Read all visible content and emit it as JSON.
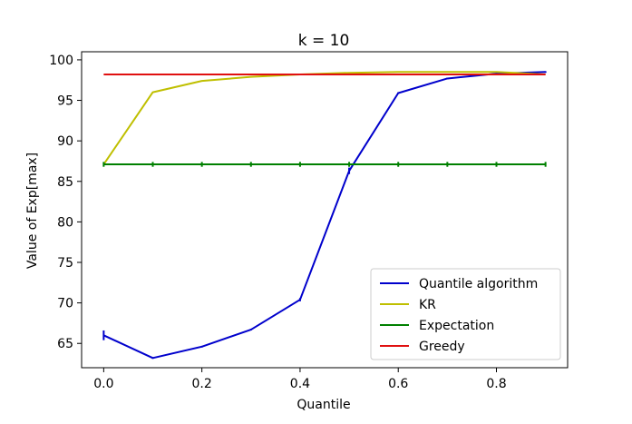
{
  "chart_data": {
    "type": "line",
    "title": "k = 10",
    "xlabel": "Quantile",
    "ylabel": "Value of Exp[max]",
    "xlim": [
      -0.045,
      0.945
    ],
    "ylim": [
      62,
      101
    ],
    "xticks": [
      0.0,
      0.2,
      0.4,
      0.6,
      0.8
    ],
    "xtick_labels": [
      "0.0",
      "0.2",
      "0.4",
      "0.6",
      "0.8"
    ],
    "yticks": [
      65,
      70,
      75,
      80,
      85,
      90,
      95,
      100
    ],
    "ytick_labels": [
      "65",
      "70",
      "75",
      "80",
      "85",
      "90",
      "95",
      "100"
    ],
    "x": [
      0.0,
      0.1,
      0.2,
      0.3,
      0.4,
      0.5,
      0.6,
      0.7,
      0.8,
      0.9
    ],
    "series": [
      {
        "name": "Quantile algorithm",
        "color": "#0000cc",
        "values": [
          66.0,
          63.2,
          64.6,
          66.7,
          70.4,
          86.3,
          95.9,
          97.7,
          98.3,
          98.5
        ],
        "errors": [
          0.6,
          0.1,
          0.1,
          0.1,
          0.2,
          0.4,
          0.1,
          0.1,
          0.1,
          0.1
        ]
      },
      {
        "name": "KR",
        "color": "#bfbf00",
        "values": [
          87.1,
          96.0,
          97.4,
          97.9,
          98.2,
          98.4,
          98.5,
          98.5,
          98.5,
          98.2
        ],
        "errors": [
          0,
          0,
          0,
          0,
          0,
          0,
          0,
          0,
          0,
          0
        ]
      },
      {
        "name": "Expectation",
        "color": "#008000",
        "values": [
          87.1,
          87.1,
          87.1,
          87.1,
          87.1,
          87.1,
          87.1,
          87.1,
          87.1,
          87.1
        ],
        "errors": [
          0.3,
          0.3,
          0.3,
          0.3,
          0.3,
          0.3,
          0.3,
          0.3,
          0.3,
          0.3
        ]
      },
      {
        "name": "Greedy",
        "color": "#e01010",
        "values": [
          98.2,
          98.2,
          98.2,
          98.2,
          98.2,
          98.2,
          98.2,
          98.2,
          98.2,
          98.2
        ],
        "errors": [
          0,
          0,
          0,
          0,
          0,
          0,
          0,
          0,
          0,
          0
        ]
      }
    ],
    "grid": false,
    "legend_placement": "lower-right"
  }
}
